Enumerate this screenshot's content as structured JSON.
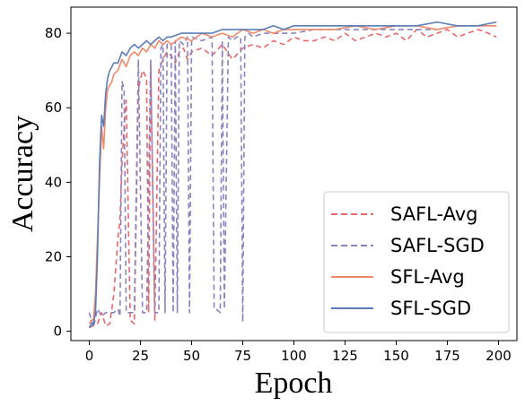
{
  "chart_data": {
    "type": "line",
    "xlabel": "Epoch",
    "ylabel": "Accuracy",
    "xlim": [
      -9,
      209
    ],
    "ylim": [
      -2.5,
      87
    ],
    "xticks": [
      0,
      25,
      50,
      75,
      100,
      125,
      150,
      175,
      200
    ],
    "yticks": [
      0,
      20,
      40,
      60,
      80
    ],
    "legend_position": "bottom-right",
    "grid": false,
    "series": [
      {
        "name": "SAFL-Avg",
        "style": "dashed",
        "color": "#e8676a",
        "x": [
          0,
          2,
          4,
          6,
          8,
          10,
          12,
          14,
          15,
          16,
          17,
          18,
          20,
          22,
          24,
          26,
          28,
          29,
          30,
          32,
          34,
          36,
          38,
          40,
          42,
          44,
          46,
          48,
          50,
          55,
          60,
          65,
          70,
          75,
          80,
          85,
          90,
          95,
          100,
          105,
          110,
          115,
          120,
          125,
          130,
          135,
          140,
          145,
          150,
          155,
          160,
          165,
          170,
          175,
          180,
          185,
          190,
          195,
          199
        ],
        "y": [
          1,
          1.5,
          2,
          5,
          1.5,
          2,
          10,
          25,
          30,
          45,
          55,
          62,
          3,
          2,
          65,
          70,
          68,
          5,
          72,
          3,
          70,
          73,
          75,
          74,
          72,
          75,
          76,
          73,
          75,
          76,
          74,
          77,
          73,
          76,
          77,
          76,
          78,
          77,
          79,
          78,
          78,
          79,
          78,
          80,
          78,
          79,
          80,
          79,
          80,
          78,
          81,
          79,
          80,
          81,
          79,
          80,
          81,
          80,
          79
        ]
      },
      {
        "name": "SAFL-SGD",
        "style": "dashed",
        "color": "#8b82bf",
        "x": [
          0,
          2,
          4,
          6,
          8,
          10,
          12,
          14,
          15,
          16,
          17,
          18,
          20,
          22,
          24,
          26,
          28,
          30,
          32,
          34,
          35,
          36,
          37,
          38,
          40,
          41,
          42,
          43,
          44,
          46,
          48,
          49,
          50,
          55,
          60,
          61,
          62,
          64,
          65,
          66,
          68,
          70,
          72,
          74,
          75,
          76,
          78,
          80,
          85,
          90,
          95,
          100,
          110,
          120,
          130,
          140,
          150,
          160,
          170,
          180,
          190,
          199
        ],
        "y": [
          5,
          1,
          6,
          4,
          5,
          5,
          5,
          6,
          4,
          67,
          65,
          5,
          5,
          5,
          73,
          5,
          5,
          73,
          5,
          5,
          76,
          77,
          5,
          77,
          77,
          5,
          78,
          5,
          78,
          77,
          79,
          5,
          79,
          78,
          79,
          6,
          6,
          5,
          78,
          6,
          79,
          78,
          79,
          79,
          2.5,
          79,
          80,
          79,
          80,
          80,
          80,
          80,
          81,
          81,
          81,
          81,
          81,
          81,
          81,
          82,
          82,
          82
        ]
      },
      {
        "name": "SFL-Avg",
        "style": "solid",
        "color": "#f08a6c",
        "x": [
          0,
          1,
          2,
          3,
          4,
          5,
          6,
          7,
          8,
          9,
          10,
          11,
          12,
          14,
          16,
          18,
          20,
          22,
          24,
          26,
          28,
          30,
          32,
          34,
          36,
          38,
          40,
          45,
          50,
          55,
          60,
          65,
          70,
          75,
          80,
          85,
          90,
          95,
          100,
          110,
          120,
          130,
          140,
          150,
          160,
          170,
          180,
          190,
          199
        ],
        "y": [
          2,
          3,
          3,
          10,
          25,
          40,
          55,
          49,
          60,
          65,
          66,
          67,
          69,
          70,
          73,
          71,
          74,
          75,
          74,
          76,
          75,
          77,
          76,
          78,
          77,
          78,
          77,
          79,
          78,
          80,
          79,
          80,
          79,
          81,
          80,
          81,
          80,
          81,
          81,
          81,
          81,
          82,
          81,
          82,
          82,
          81,
          82,
          82,
          82
        ]
      },
      {
        "name": "SFL-SGD",
        "style": "solid",
        "color": "#5b7db5",
        "x": [
          0,
          1,
          2,
          3,
          4,
          5,
          6,
          7,
          8,
          9,
          10,
          11,
          12,
          14,
          16,
          18,
          20,
          22,
          24,
          26,
          28,
          30,
          32,
          34,
          36,
          38,
          40,
          45,
          50,
          55,
          60,
          65,
          70,
          75,
          80,
          85,
          90,
          95,
          100,
          110,
          120,
          130,
          140,
          150,
          160,
          170,
          180,
          190,
          199
        ],
        "y": [
          1,
          2,
          2,
          5,
          20,
          45,
          58,
          55,
          64,
          68,
          70,
          71,
          72,
          72,
          75,
          74,
          76,
          77,
          76,
          77,
          78,
          77,
          78,
          79,
          78,
          79,
          79,
          80,
          80,
          80,
          80,
          81,
          81,
          81,
          81,
          81,
          82,
          81,
          82,
          82,
          82,
          82,
          82,
          82,
          82,
          83,
          82,
          82,
          83
        ]
      }
    ]
  }
}
